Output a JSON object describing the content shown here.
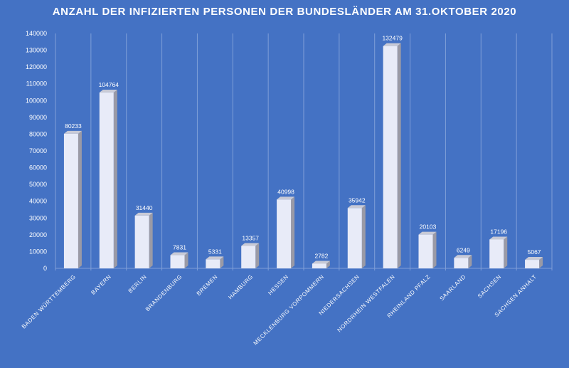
{
  "chart_data": {
    "type": "bar",
    "title": "ANZAHL DER INFIZIERTEN PERSONEN DER BUNDESLÄNDER AM 31.OKTOBER 2020",
    "xlabel": "",
    "ylabel": "",
    "categories": [
      "BADEN WÜRTTEMBERG",
      "BAYERN",
      "BERLIN",
      "BRANDENBURG",
      "BREMEN",
      "HAMBURG",
      "HESSEN",
      "MECKLENBURG VORPOMMERN",
      "NIEDERSACHSEN",
      "NORDRHEIN WESTFALEN",
      "RHEINLAND PFALZ",
      "SAARLAND",
      "SACHSEN",
      "SACHSEN ANHALT"
    ],
    "values": [
      80233,
      104764,
      31440,
      7831,
      5331,
      13357,
      40998,
      2782,
      35942,
      132479,
      20103,
      6249,
      17196,
      5067
    ],
    "data_labels": [
      "80233",
      "104764",
      "31440",
      "7831",
      "5331",
      "13357",
      "40998",
      "2782",
      "35942",
      "132479",
      "20103",
      "6249",
      "17196",
      "5067"
    ],
    "ylim": [
      0,
      140000
    ],
    "y_ticks": [
      "0",
      "10000",
      "20000",
      "30000",
      "40000",
      "50000",
      "60000",
      "70000",
      "80000",
      "90000",
      "100000",
      "110000",
      "120000",
      "130000",
      "140000"
    ],
    "grid": "vertical",
    "legend": "none",
    "colors": {
      "background": "#4472c4",
      "bar_front": "#e8ebf8",
      "bar_side": "#9a9aa6",
      "bar_top": "#c8cad6",
      "gridline": "#7f9fd8",
      "text": "#ffffff"
    }
  }
}
